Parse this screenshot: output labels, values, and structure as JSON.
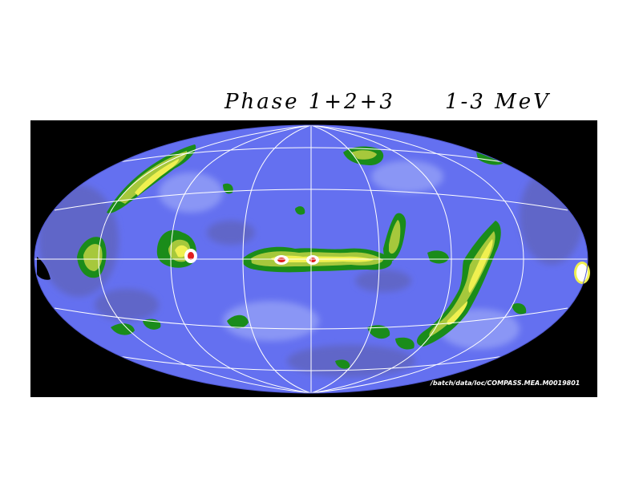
{
  "title": {
    "phase": "Phase 1+2+3",
    "energy": "1-3 MeV"
  },
  "map": {
    "projection": "Aitoff / Hammer all-sky",
    "source_path": "/batch/data/loc/COMPASS.MEA.M0019801",
    "colors": {
      "background": "#000000",
      "sky_base": "#6470f0",
      "sky_light": "#8a96f5",
      "sky_dim": "#6066c8",
      "level_green": "#1a8c1a",
      "level_yellow_green": "#a6c83c",
      "level_yellow": "#f0f050",
      "level_white": "#ffffff",
      "level_red": "#e01e1e",
      "grid": "#ffffff"
    }
  }
}
